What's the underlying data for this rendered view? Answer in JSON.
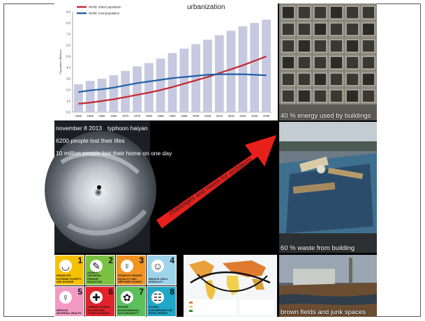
{
  "chart_data": {
    "type": "bar",
    "title": "urbanization",
    "ylabel": "Population (Billions)",
    "legend": [
      "World, urban population",
      "World, rural population"
    ],
    "legend_position": "top-left",
    "ylim": [
      0,
      9
    ],
    "yticks": [
      "0.0",
      "1.0",
      "2.0",
      "3.0",
      "4.0",
      "5.0",
      "6.0",
      "7.0",
      "8.0",
      "9.0"
    ],
    "categories": [
      "1950",
      "1955",
      "1960",
      "1965",
      "1970",
      "1975",
      "1980",
      "1985",
      "1990",
      "1995",
      "2000",
      "2005",
      "2010",
      "2015",
      "2020",
      "2025",
      "2030"
    ],
    "values": [
      2.5,
      2.8,
      3.0,
      3.3,
      3.7,
      4.1,
      4.4,
      4.8,
      5.3,
      5.7,
      6.1,
      6.5,
      6.9,
      7.3,
      7.7,
      8.0,
      8.3
    ],
    "series": [
      {
        "name": "World, urban population",
        "color": "#c4262e",
        "values": [
          0.75,
          0.85,
          1.0,
          1.15,
          1.35,
          1.55,
          1.75,
          1.98,
          2.25,
          2.55,
          2.85,
          3.15,
          3.5,
          3.85,
          4.2,
          4.6,
          5.0
        ]
      },
      {
        "name": "World, rural population",
        "color": "#1f5fa8",
        "values": [
          1.8,
          1.95,
          2.05,
          2.2,
          2.4,
          2.6,
          2.75,
          2.9,
          3.05,
          3.15,
          3.25,
          3.35,
          3.4,
          3.4,
          3.4,
          3.35,
          3.3
        ]
      }
    ],
    "bar_color": "#c7c9e0",
    "grid": false
  },
  "captions": {
    "energy": "40 % energy used by buildings",
    "waste": "60 % waste from building",
    "brownfields": "brown fields and junk spaces"
  },
  "typhoon": {
    "date": "november 8   2013",
    "name": "typhoon haiyan",
    "deaths": "6200 people lost their lifes",
    "homeless": "10 million people lost their home on one day"
  },
  "arrow": {
    "label": "challenges and needs for architects",
    "color": "#e8201c"
  },
  "mdg": [
    {
      "num": "1",
      "text": "Eradicate extreme poverty and hunger",
      "color": "#f6c200",
      "icon": "bowl-icon"
    },
    {
      "num": "2",
      "text": "Achieve universal primary education",
      "color": "#7cc242",
      "icon": "pencil-icon"
    },
    {
      "num": "3",
      "text": "Promote gender equality and empower women",
      "color": "#f29423",
      "icon": "gender-icon"
    },
    {
      "num": "4",
      "text": "Reduce child mortality",
      "color": "#9ed3ec",
      "icon": "teddy-icon"
    },
    {
      "num": "5",
      "text": "Improve maternal health",
      "color": "#f39ac4",
      "icon": "mother-icon"
    },
    {
      "num": "6",
      "text": "Combat HIV/AIDS, malaria and other diseases",
      "color": "#e2232a",
      "icon": "medkit-icon"
    },
    {
      "num": "7",
      "text": "Ensure environmental sustainability",
      "color": "#5bbf5b",
      "icon": "plant-icon"
    },
    {
      "num": "8",
      "text": "Global partnership for development",
      "color": "#1fa8c9",
      "icon": "people-icon"
    }
  ]
}
